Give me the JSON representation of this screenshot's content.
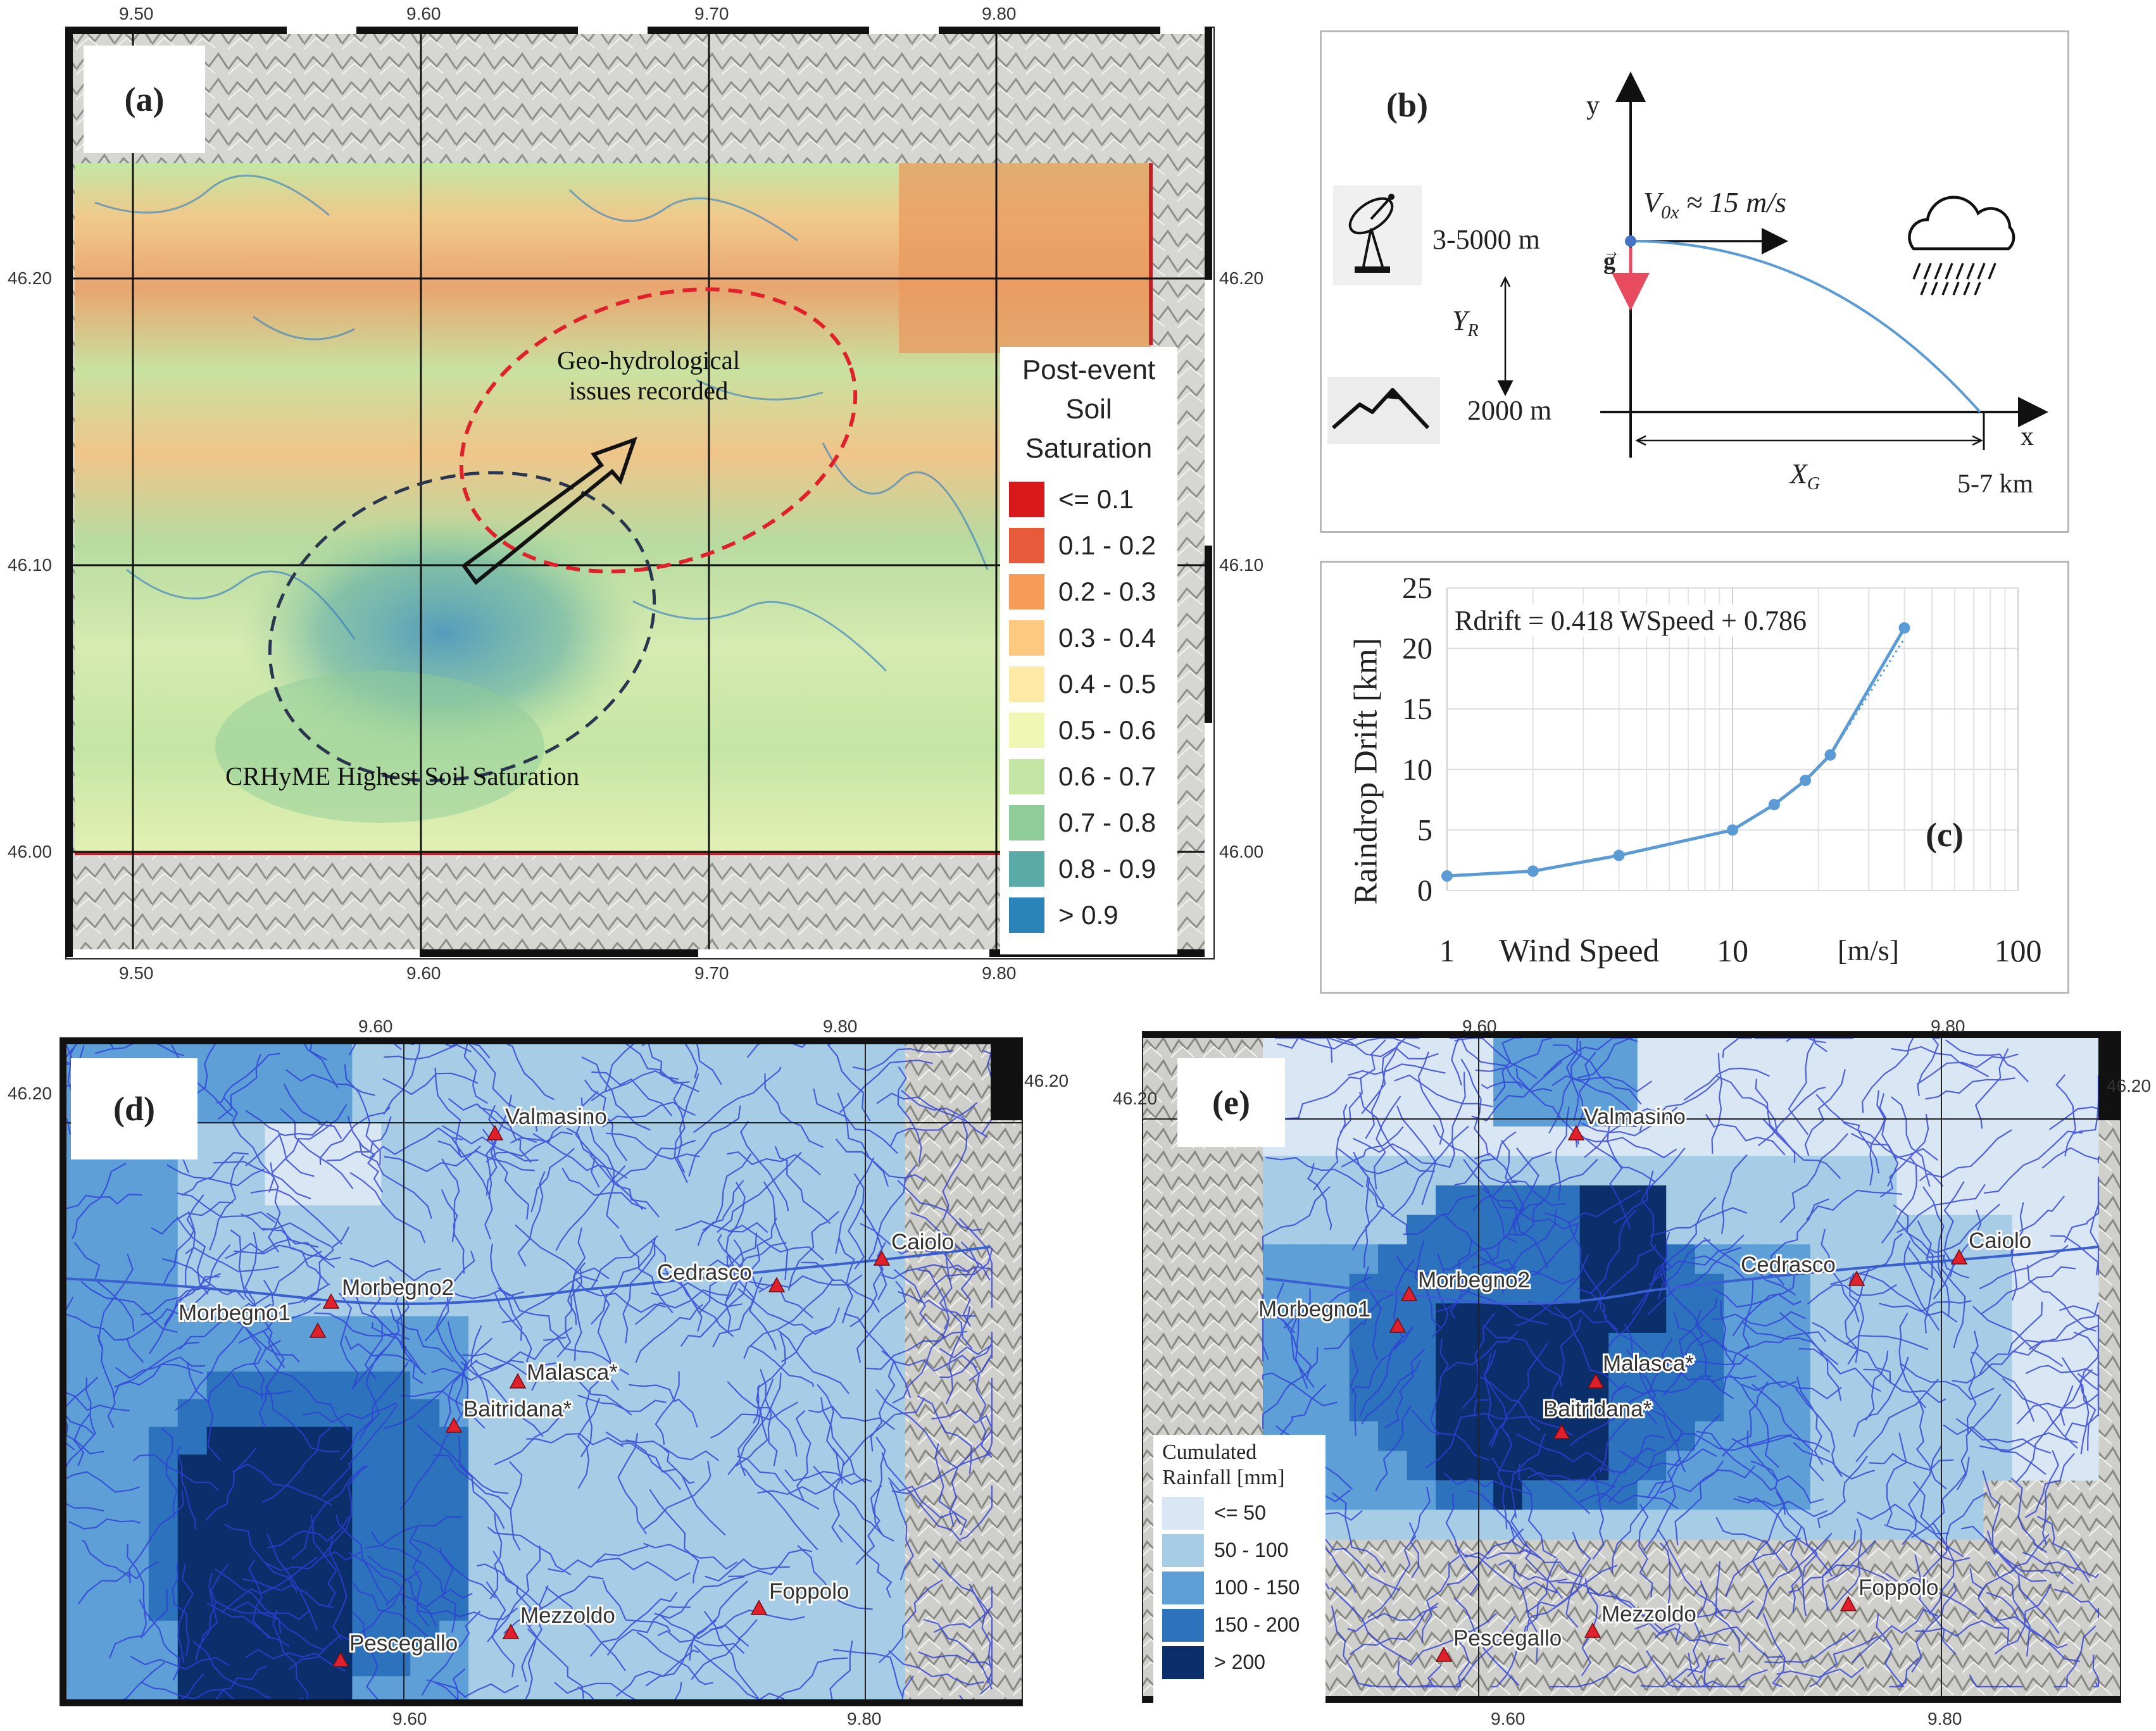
{
  "panel_a": {
    "tag": "(a)",
    "lon_ticks": [
      "9.50",
      "9.60",
      "9.70",
      "9.80"
    ],
    "lat_ticks": [
      "46.20",
      "46.10",
      "46.00"
    ],
    "annot_red": [
      "Geo-hydrological",
      "issues recorded"
    ],
    "annot_black": "CRHyME Highest Soil Saturation",
    "legend": {
      "title": [
        "Post-event",
        "Soil",
        "Saturation"
      ],
      "classes": [
        {
          "label": "<= 0.1",
          "color": "#d7191c"
        },
        {
          "label": "0.1 - 0.2",
          "color": "#e85b3a"
        },
        {
          "label": "0.2 - 0.3",
          "color": "#f59d59"
        },
        {
          "label": "0.3 - 0.4",
          "color": "#fdc980"
        },
        {
          "label": "0.4 - 0.5",
          "color": "#fee9a5"
        },
        {
          "label": "0.5 - 0.6",
          "color": "#f0f7b4"
        },
        {
          "label": "0.6 - 0.7",
          "color": "#c4e6a4"
        },
        {
          "label": "0.7 - 0.8",
          "color": "#90cc9a"
        },
        {
          "label": "0.8 - 0.9",
          "color": "#5aaba8"
        },
        {
          "label": "> 0.9",
          "color": "#2b83ba"
        }
      ]
    }
  },
  "panel_b": {
    "tag": "(b)",
    "y_axis": "y",
    "x_axis": "x",
    "top_height": "3-5000 m",
    "bottom_height": "2000 m",
    "velocity": "V",
    "velocity_sub": "0x",
    "velocity_value": "≈ 15 m/s",
    "gravity": "g",
    "yr": "Y",
    "yr_sub": "R",
    "xg": "X",
    "xg_sub": "G",
    "distance": "5-7 km",
    "icons": [
      "radar-dish-icon",
      "mountain-icon",
      "rain-cloud-icon"
    ]
  },
  "panel_c": {
    "tag": "(c)",
    "equation": "Rdrift = 0.418 WSpeed + 0.786",
    "x_label": "Wind Speed",
    "x_unit": "[m/s]",
    "x_ticks": [
      "1",
      "10",
      "100"
    ],
    "y_ticks": [
      "0",
      "5",
      "10",
      "15",
      "20",
      "25"
    ]
  },
  "chart_data": {
    "type": "line",
    "title": "",
    "xlabel": "Wind Speed [m/s]",
    "ylabel": "Raindrop Drift [km]",
    "xscale": "log",
    "xlim": [
      1,
      100
    ],
    "ylim": [
      0,
      25
    ],
    "series": [
      {
        "x": [
          1,
          2,
          4,
          10,
          14,
          18,
          22,
          40
        ],
        "y": [
          1.2,
          1.6,
          2.9,
          5.0,
          7.1,
          9.1,
          11.2,
          21.7
        ]
      }
    ],
    "trendline": {
      "slope": 0.418,
      "intercept": 0.786,
      "style": "dotted"
    },
    "grid": true
  },
  "panel_d": {
    "tag": "(d)",
    "lon_ticks": [
      "9.60",
      "9.80"
    ],
    "lat_ticks": [
      "46.20"
    ],
    "stations": [
      {
        "name": "Valmasino"
      },
      {
        "name": "Caiolo"
      },
      {
        "name": "Cedrasco"
      },
      {
        "name": "Morbegno2"
      },
      {
        "name": "Morbegno1"
      },
      {
        "name": "Malasca*"
      },
      {
        "name": "Baitridana*"
      },
      {
        "name": "Foppolo"
      },
      {
        "name": "Mezzoldo"
      },
      {
        "name": "Pescegallo"
      }
    ]
  },
  "panel_e": {
    "tag": "(e)",
    "lon_ticks": [
      "9.60",
      "9.80"
    ],
    "lat_ticks": [
      "46.20",
      "46.20"
    ],
    "legend": {
      "title": [
        "Cumulated",
        "Rainfall [mm]"
      ],
      "classes": [
        {
          "label": "<= 50",
          "color": "#d9e6f4"
        },
        {
          "label": "50 - 100",
          "color": "#a6cce6"
        },
        {
          "label": "100 - 150",
          "color": "#5d9fd6"
        },
        {
          "label": "150 - 200",
          "color": "#2d72bc"
        },
        {
          "label": "> 200",
          "color": "#0b2f6b"
        }
      ]
    }
  }
}
